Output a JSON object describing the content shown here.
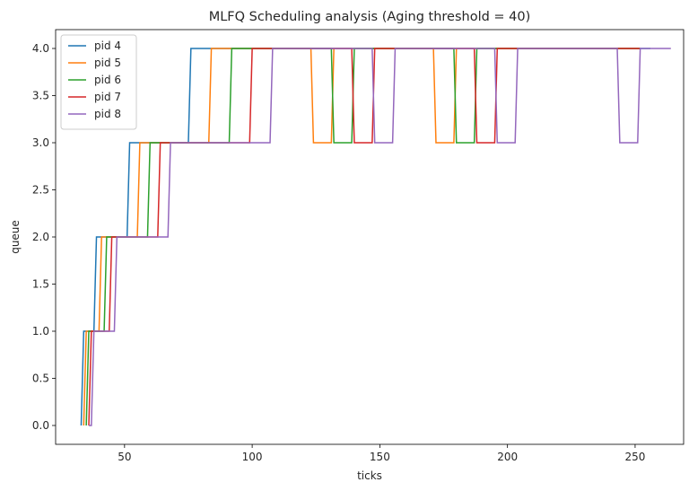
{
  "chart_data": {
    "type": "line",
    "title": "MLFQ Scheduling analysis (Aging threshold = 40)",
    "xlabel": "ticks",
    "ylabel": "queue",
    "xlim": [
      23,
      269
    ],
    "ylim": [
      -0.2,
      4.2
    ],
    "xticks": [
      50,
      100,
      150,
      200,
      250
    ],
    "yticks": [
      0.0,
      0.5,
      1.0,
      1.5,
      2.0,
      2.5,
      3.0,
      3.5,
      4.0
    ],
    "grid": false,
    "legend_position": "top-left",
    "series": [
      {
        "name": "pid 4",
        "color": "#1f77b4",
        "points": [
          [
            33,
            0
          ],
          [
            34,
            1
          ],
          [
            38,
            1
          ],
          [
            39,
            2
          ],
          [
            51,
            2
          ],
          [
            52,
            3
          ],
          [
            75,
            3
          ],
          [
            76,
            4
          ],
          [
            256,
            4
          ]
        ]
      },
      {
        "name": "pid 5",
        "color": "#ff7f0e",
        "points": [
          [
            34,
            0
          ],
          [
            35,
            1
          ],
          [
            40,
            1
          ],
          [
            41,
            2
          ],
          [
            55,
            2
          ],
          [
            56,
            3
          ],
          [
            83,
            3
          ],
          [
            84,
            4
          ],
          [
            123,
            4
          ],
          [
            124,
            3
          ],
          [
            131,
            3
          ],
          [
            132,
            4
          ],
          [
            171,
            4
          ],
          [
            172,
            3
          ],
          [
            179,
            3
          ],
          [
            180,
            4
          ],
          [
            252,
            4
          ]
        ]
      },
      {
        "name": "pid 6",
        "color": "#2ca02c",
        "points": [
          [
            35,
            0
          ],
          [
            36,
            1
          ],
          [
            42,
            1
          ],
          [
            43,
            2
          ],
          [
            59,
            2
          ],
          [
            60,
            3
          ],
          [
            91,
            3
          ],
          [
            92,
            4
          ],
          [
            131,
            4
          ],
          [
            132,
            3
          ],
          [
            139,
            3
          ],
          [
            140,
            4
          ],
          [
            179,
            4
          ],
          [
            180,
            3
          ],
          [
            187,
            3
          ],
          [
            188,
            4
          ],
          [
            252,
            4
          ]
        ]
      },
      {
        "name": "pid 7",
        "color": "#d62728",
        "points": [
          [
            36,
            0
          ],
          [
            37,
            1
          ],
          [
            44,
            1
          ],
          [
            45,
            2
          ],
          [
            63,
            2
          ],
          [
            64,
            3
          ],
          [
            99,
            3
          ],
          [
            100,
            4
          ],
          [
            139,
            4
          ],
          [
            140,
            3
          ],
          [
            147,
            3
          ],
          [
            148,
            4
          ],
          [
            187,
            4
          ],
          [
            188,
            3
          ],
          [
            195,
            3
          ],
          [
            196,
            4
          ],
          [
            252,
            4
          ]
        ]
      },
      {
        "name": "pid 8",
        "color": "#9467bd",
        "points": [
          [
            36,
            0
          ],
          [
            37,
            0
          ],
          [
            38,
            1
          ],
          [
            46,
            1
          ],
          [
            47,
            2
          ],
          [
            67,
            2
          ],
          [
            68,
            3
          ],
          [
            107,
            3
          ],
          [
            108,
            4
          ],
          [
            147,
            4
          ],
          [
            148,
            3
          ],
          [
            155,
            3
          ],
          [
            156,
            4
          ],
          [
            195,
            4
          ],
          [
            196,
            3
          ],
          [
            203,
            3
          ],
          [
            204,
            4
          ],
          [
            243,
            4
          ],
          [
            244,
            3
          ],
          [
            251,
            3
          ],
          [
            252,
            4
          ],
          [
            264,
            4
          ]
        ]
      }
    ]
  }
}
